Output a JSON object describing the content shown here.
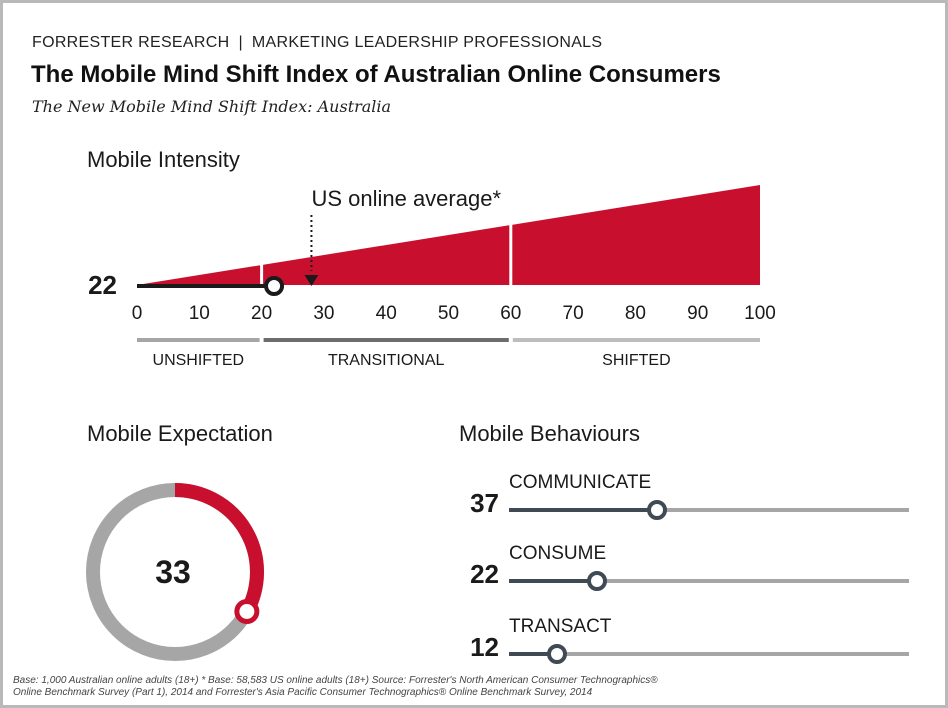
{
  "header": {
    "source": "FORRESTER RESEARCH",
    "separator": "|",
    "audience": "MARKETING LEADERSHIP PROFESSIONALS"
  },
  "title": "The Mobile Mind Shift Index of Australian Online Consumers",
  "subtitle": "The New Mobile Mind Shift Index: Australia",
  "footnote": {
    "line1": "Base: 1,000 Australian online adults (18+) * Base: 58,583 US online adults (18+) Source: Forrester's North American Consumer Technographics®",
    "line2": "Online Benchmark Survey (Part 1), 2014 and Forrester's Asia Pacific Consumer Technographics® Online Benchmark Survey, 2014"
  },
  "colors": {
    "accent": "#c8102e",
    "track": "#a6a6a6",
    "transitional": "#6d6d6d",
    "dark": "#1a1a1a",
    "knob_blue": "#3f4a55"
  },
  "chart_data": [
    {
      "type": "bar",
      "title": "Mobile Intensity",
      "xlim": [
        0,
        100
      ],
      "ticks": [
        0,
        10,
        20,
        30,
        40,
        50,
        60,
        70,
        80,
        90,
        100
      ],
      "value": 22,
      "value_label": "22",
      "reference": {
        "label": "US online average*",
        "value": 28
      },
      "segments": [
        {
          "label": "UNSHIFTED",
          "range": [
            0,
            20
          ]
        },
        {
          "label": "TRANSITIONAL",
          "range": [
            20,
            60
          ]
        },
        {
          "label": "SHIFTED",
          "range": [
            60,
            100
          ]
        }
      ]
    },
    {
      "type": "pie",
      "title": "Mobile Expectation",
      "value": 33,
      "value_label": "33",
      "max": 100
    },
    {
      "type": "bar",
      "title": "Mobile Behaviours",
      "xlim": [
        0,
        100
      ],
      "categories": [
        "COMMUNICATE",
        "CONSUME",
        "TRANSACT"
      ],
      "values": [
        37,
        22,
        12
      ],
      "value_labels": [
        "37",
        "22",
        "12"
      ]
    }
  ]
}
